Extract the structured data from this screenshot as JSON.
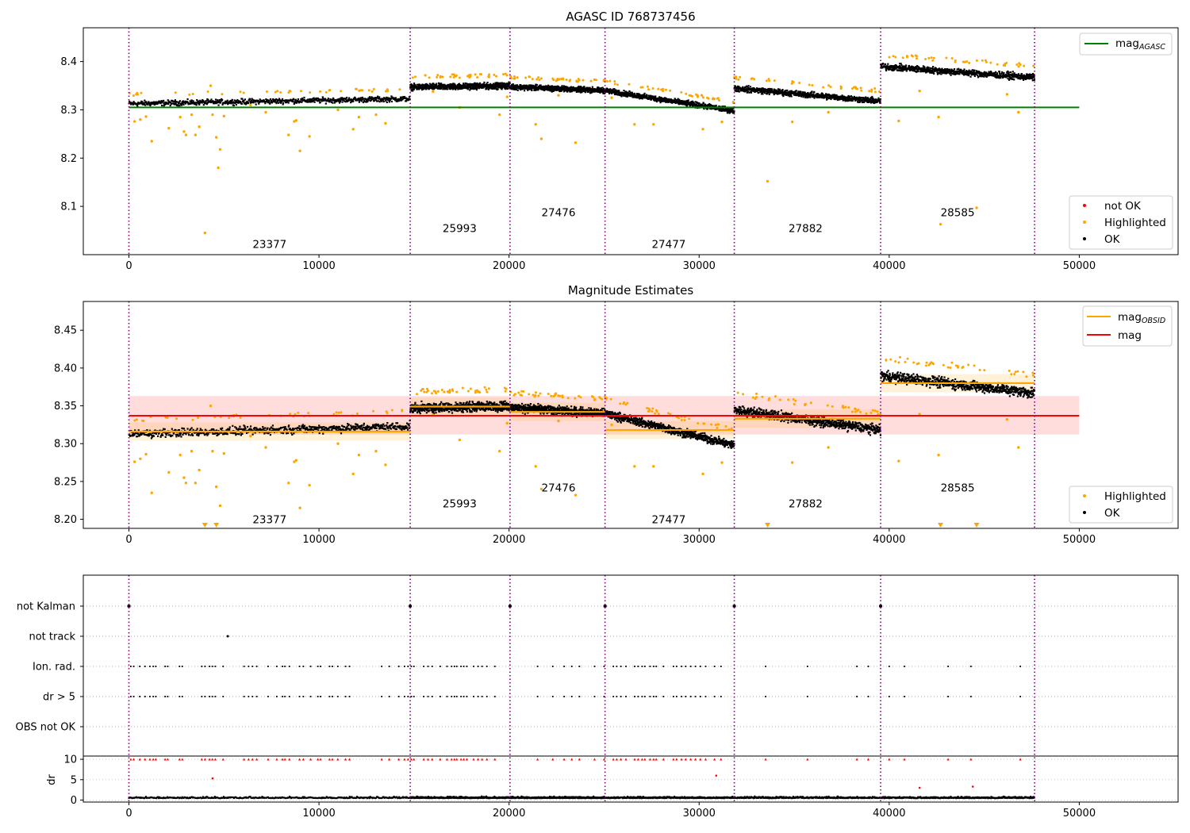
{
  "figure_title": "AGASC ID 768737456",
  "chart_data": [
    {
      "type": "scatter",
      "title": "AGASC ID 768737456",
      "xlim": [
        -2400,
        55200
      ],
      "ylim": [
        8.0,
        8.47
      ],
      "xticks": [
        0,
        10000,
        20000,
        30000,
        40000,
        50000
      ],
      "xtick_labels": [
        "0",
        "10000",
        "20000",
        "30000",
        "40000",
        "50000"
      ],
      "yticks": [
        8.1,
        8.2,
        8.3,
        8.4
      ],
      "ytick_labels": [
        "8.1",
        "8.2",
        "8.3",
        "8.4"
      ],
      "obs_boundaries": [
        0,
        14800,
        20050,
        25050,
        31850,
        39550,
        47650
      ],
      "obs_labels": [
        {
          "label": "23377",
          "x": 7400,
          "y": 8.022
        },
        {
          "label": "25993",
          "x": 17400,
          "y": 8.055
        },
        {
          "label": "27476",
          "x": 22600,
          "y": 8.088
        },
        {
          "label": "27477",
          "x": 28400,
          "y": 8.022
        },
        {
          "label": "27882",
          "x": 35600,
          "y": 8.055
        },
        {
          "label": "28585",
          "x": 43600,
          "y": 8.088
        }
      ],
      "segments": [
        {
          "obsid": "23377",
          "x_start": 0,
          "x_end": 14800,
          "mag_start": 8.313,
          "mag_end": 8.323,
          "spread": 0.008
        },
        {
          "obsid": "25993",
          "x_start": 14800,
          "x_end": 20050,
          "mag_start": 8.347,
          "mag_end": 8.35,
          "spread": 0.009
        },
        {
          "obsid": "27476",
          "x_start": 20050,
          "x_end": 25050,
          "mag_start": 8.348,
          "mag_end": 8.34,
          "spread": 0.008
        },
        {
          "obsid": "27477",
          "x_start": 25050,
          "x_end": 31850,
          "mag_start": 8.34,
          "mag_end": 8.298,
          "spread": 0.008
        },
        {
          "obsid": "27882",
          "x_start": 31850,
          "x_end": 39550,
          "mag_start": 8.345,
          "mag_end": 8.318,
          "spread": 0.009
        },
        {
          "obsid": "28585",
          "x_start": 39550,
          "x_end": 47650,
          "mag_start": 8.39,
          "mag_end": 8.367,
          "spread": 0.01
        }
      ],
      "mag_agasc": {
        "value": 8.305,
        "x_start": 0,
        "x_end": 50000,
        "color": "#008000"
      },
      "highlighted_outliers": [
        [
          300,
          8.276
        ],
        [
          600,
          8.28
        ],
        [
          900,
          8.286
        ],
        [
          1200,
          8.235
        ],
        [
          2100,
          8.262
        ],
        [
          2700,
          8.285
        ],
        [
          2900,
          8.255
        ],
        [
          3000,
          8.248
        ],
        [
          3300,
          8.29
        ],
        [
          3500,
          8.248
        ],
        [
          3700,
          8.265
        ],
        [
          4000,
          8.045
        ],
        [
          4300,
          8.35
        ],
        [
          4400,
          8.29
        ],
        [
          4600,
          8.243
        ],
        [
          4700,
          8.18
        ],
        [
          4800,
          8.218
        ],
        [
          5000,
          8.287
        ],
        [
          6400,
          8.31
        ],
        [
          7200,
          8.295
        ],
        [
          8400,
          8.248
        ],
        [
          8700,
          8.276
        ],
        [
          8800,
          8.278
        ],
        [
          9000,
          8.215
        ],
        [
          9500,
          8.245
        ],
        [
          11000,
          8.3
        ],
        [
          11800,
          8.26
        ],
        [
          12100,
          8.285
        ],
        [
          13000,
          8.29
        ],
        [
          13500,
          8.272
        ],
        [
          16000,
          8.338
        ],
        [
          17400,
          8.305
        ],
        [
          19500,
          8.29
        ],
        [
          19900,
          8.327
        ],
        [
          21400,
          8.27
        ],
        [
          21700,
          8.24
        ],
        [
          22600,
          8.33
        ],
        [
          23500,
          8.232
        ],
        [
          25400,
          8.325
        ],
        [
          26600,
          8.27
        ],
        [
          27600,
          8.27
        ],
        [
          30200,
          8.26
        ],
        [
          31200,
          8.275
        ],
        [
          33600,
          8.152
        ],
        [
          34900,
          8.275
        ],
        [
          36800,
          8.295
        ],
        [
          40500,
          8.277
        ],
        [
          41600,
          8.339
        ],
        [
          42600,
          8.285
        ],
        [
          42700,
          8.063
        ],
        [
          44600,
          8.097
        ],
        [
          46200,
          8.332
        ],
        [
          46800,
          8.295
        ]
      ],
      "legend": [
        {
          "label": "not OK",
          "color": "#ff0000",
          "kind": "dot"
        },
        {
          "label": "Highlighted",
          "color": "#ffa500",
          "kind": "dot"
        },
        {
          "label": "OK",
          "color": "#000000",
          "kind": "dot"
        }
      ],
      "legend_line_prefix": "mag",
      "legend_line_sub": "AGASC"
    },
    {
      "type": "scatter",
      "title": "Magnitude Estimates",
      "xlim": [
        -2400,
        55200
      ],
      "ylim": [
        8.188,
        8.488
      ],
      "xticks": [
        0,
        10000,
        20000,
        30000,
        40000,
        50000
      ],
      "xtick_labels": [
        "0",
        "10000",
        "20000",
        "30000",
        "40000",
        "50000"
      ],
      "yticks": [
        8.2,
        8.25,
        8.3,
        8.35,
        8.4,
        8.45
      ],
      "ytick_labels": [
        "8.20",
        "8.25",
        "8.30",
        "8.35",
        "8.40",
        "8.45"
      ],
      "obs_labels": [
        {
          "label": "23377",
          "x": 7400,
          "y": 8.2
        },
        {
          "label": "25993",
          "x": 17400,
          "y": 8.221
        },
        {
          "label": "27476",
          "x": 22600,
          "y": 8.242
        },
        {
          "label": "27477",
          "x": 28400,
          "y": 8.2
        },
        {
          "label": "27882",
          "x": 35600,
          "y": 8.221
        },
        {
          "label": "28585",
          "x": 43600,
          "y": 8.242
        }
      ],
      "mag_obsid": [
        {
          "obsid": "23377",
          "value": 8.316
        },
        {
          "obsid": "25993",
          "value": 8.349
        },
        {
          "obsid": "27476",
          "value": 8.342
        },
        {
          "obsid": "27477",
          "value": 8.318
        },
        {
          "obsid": "27882",
          "value": 8.333
        },
        {
          "obsid": "28585",
          "value": 8.38
        }
      ],
      "mag": {
        "value": 8.337,
        "band": [
          8.312,
          8.363
        ],
        "x_start": 0,
        "x_end": 50000,
        "color": "#ff0000"
      },
      "clipped_markers": [
        4000,
        4600,
        33600,
        42700,
        44600
      ],
      "legend": [
        {
          "label": "Highlighted",
          "color": "#ffa500",
          "kind": "dot"
        },
        {
          "label": "OK",
          "color": "#000000",
          "kind": "dot"
        }
      ],
      "legend_line_prefix": "mag",
      "legend_line_sub": "OBSID",
      "legend_line2": "mag"
    },
    {
      "type": "scatter",
      "title": "",
      "categories": [
        "not Kalman",
        "not track",
        "Ion. rad.",
        "dr > 5",
        "OBS not OK"
      ],
      "flag_times": {
        "not Kalman": [
          0,
          14800,
          20050,
          25050,
          31850,
          39550
        ],
        "not track": [
          5200
        ],
        "ion_dense_ranges": [
          [
            100,
            12300
          ],
          [
            14500,
            20000
          ],
          [
            25000,
            31800
          ]
        ],
        "ion_sparse": [
          13300,
          13700,
          14200,
          21500,
          22300,
          22900,
          23300,
          23700,
          24500,
          33500,
          35700,
          38300,
          38900,
          40000,
          40800,
          43100,
          44300,
          46900
        ]
      },
      "dr": {
        "ylim": [
          -0.5,
          10.8
        ],
        "yticks": [
          0,
          5,
          10
        ],
        "ytick_labels": [
          "0",
          "5",
          "10"
        ],
        "ylabel": "dr",
        "clipped_value": 10,
        "high_points": [
          [
            4400,
            5.3
          ],
          [
            30900,
            6.0
          ],
          [
            41600,
            3.0
          ],
          [
            44400,
            3.3
          ]
        ]
      },
      "xlim": [
        -2400,
        55200
      ],
      "xticks": [
        0,
        10000,
        20000,
        30000,
        40000,
        50000
      ],
      "xtick_labels": [
        "0",
        "10000",
        "20000",
        "30000",
        "40000",
        "50000"
      ]
    }
  ]
}
